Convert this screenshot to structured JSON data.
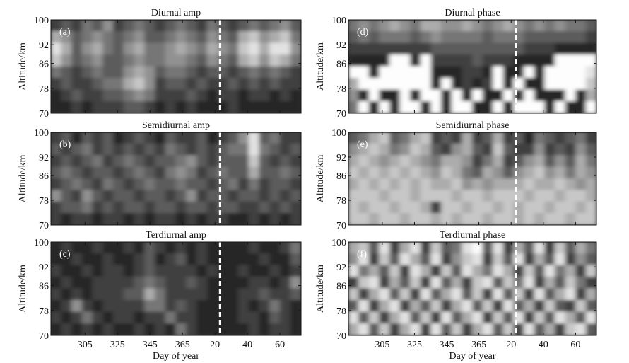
{
  "chart_data": [
    {
      "id": "a",
      "type": "heatmap",
      "title": "Diurnal amp",
      "panel_label": "(a)",
      "ylabel": "Altitude/km",
      "xlabel": "",
      "grid": [
        [
          2,
          3,
          2,
          4,
          3,
          5,
          2,
          3,
          4,
          3,
          2,
          3,
          4,
          3,
          2,
          4,
          3,
          2,
          3,
          4,
          3,
          4,
          5,
          3
        ],
        [
          6,
          5,
          3,
          4,
          5,
          4,
          3,
          4,
          5,
          3,
          3,
          4,
          5,
          4,
          3,
          5,
          4,
          3,
          6,
          7,
          5,
          6,
          7,
          4
        ],
        [
          8,
          6,
          3,
          5,
          6,
          4,
          3,
          5,
          6,
          4,
          4,
          5,
          6,
          5,
          4,
          6,
          5,
          4,
          7,
          8,
          6,
          8,
          8,
          5
        ],
        [
          7,
          5,
          3,
          4,
          5,
          3,
          3,
          4,
          5,
          4,
          4,
          5,
          5,
          4,
          3,
          5,
          4,
          3,
          6,
          7,
          5,
          7,
          6,
          4
        ],
        [
          4,
          3,
          2,
          3,
          4,
          3,
          3,
          5,
          6,
          5,
          3,
          4,
          4,
          3,
          2,
          3,
          3,
          2,
          3,
          4,
          3,
          4,
          3,
          2
        ],
        [
          2,
          3,
          2,
          2,
          3,
          4,
          4,
          6,
          7,
          5,
          2,
          3,
          3,
          2,
          3,
          2,
          2,
          3,
          2,
          3,
          2,
          3,
          2,
          2
        ],
        [
          1,
          2,
          3,
          2,
          2,
          3,
          3,
          4,
          5,
          4,
          2,
          2,
          2,
          3,
          2,
          1,
          2,
          2,
          1,
          2,
          2,
          1,
          2,
          1
        ],
        [
          1,
          1,
          2,
          1,
          2,
          2,
          2,
          3,
          3,
          2,
          1,
          2,
          1,
          2,
          1,
          1,
          1,
          2,
          1,
          1,
          1,
          1,
          1,
          1
        ]
      ]
    },
    {
      "id": "b",
      "type": "heatmap",
      "title": "Semidiurnal amp",
      "panel_label": "(b)",
      "ylabel": "Altitude/km",
      "xlabel": "",
      "grid": [
        [
          2,
          3,
          1,
          3,
          2,
          3,
          1,
          2,
          3,
          2,
          1,
          3,
          2,
          2,
          3,
          1,
          2,
          3,
          5,
          8,
          3,
          4,
          2,
          2
        ],
        [
          3,
          2,
          3,
          4,
          2,
          3,
          2,
          3,
          2,
          3,
          2,
          4,
          3,
          2,
          3,
          2,
          3,
          4,
          4,
          8,
          4,
          3,
          2,
          3
        ],
        [
          2,
          3,
          2,
          3,
          4,
          2,
          3,
          4,
          3,
          2,
          3,
          3,
          4,
          5,
          3,
          2,
          3,
          3,
          3,
          7,
          3,
          2,
          3,
          2
        ],
        [
          3,
          4,
          3,
          2,
          3,
          3,
          2,
          3,
          4,
          3,
          2,
          4,
          5,
          4,
          2,
          3,
          4,
          3,
          3,
          6,
          3,
          3,
          4,
          3
        ],
        [
          2,
          3,
          4,
          3,
          2,
          4,
          3,
          2,
          3,
          4,
          3,
          3,
          4,
          3,
          3,
          2,
          3,
          4,
          2,
          4,
          2,
          3,
          3,
          2
        ],
        [
          5,
          3,
          2,
          5,
          3,
          2,
          3,
          3,
          2,
          3,
          3,
          2,
          3,
          5,
          2,
          3,
          3,
          2,
          3,
          3,
          2,
          3,
          2,
          3
        ],
        [
          2,
          3,
          3,
          4,
          2,
          3,
          2,
          3,
          3,
          2,
          3,
          3,
          2,
          3,
          3,
          2,
          3,
          3,
          2,
          2,
          3,
          2,
          3,
          2
        ],
        [
          2,
          1,
          2,
          2,
          1,
          2,
          2,
          1,
          2,
          1,
          2,
          2,
          1,
          2,
          1,
          2,
          2,
          1,
          1,
          2,
          1,
          2,
          1,
          2
        ]
      ]
    },
    {
      "id": "c",
      "type": "heatmap",
      "title": "Terdiurnal amp",
      "panel_label": "(c)",
      "ylabel": "Altitude/km",
      "xlabel": "Day of year",
      "grid": [
        [
          1,
          2,
          1,
          1,
          2,
          1,
          1,
          2,
          1,
          3,
          2,
          1,
          2,
          1,
          2,
          1,
          1,
          1,
          1,
          2,
          1,
          1,
          2,
          4
        ],
        [
          1,
          1,
          2,
          1,
          1,
          2,
          1,
          1,
          2,
          3,
          1,
          2,
          3,
          1,
          2,
          1,
          1,
          1,
          1,
          1,
          2,
          1,
          1,
          3
        ],
        [
          2,
          1,
          1,
          2,
          1,
          2,
          2,
          1,
          2,
          3,
          2,
          2,
          2,
          2,
          1,
          2,
          1,
          1,
          2,
          1,
          1,
          2,
          1,
          2
        ],
        [
          1,
          2,
          1,
          1,
          2,
          2,
          2,
          2,
          3,
          4,
          3,
          2,
          2,
          3,
          2,
          1,
          1,
          1,
          1,
          2,
          2,
          1,
          2,
          5
        ],
        [
          2,
          1,
          2,
          1,
          2,
          2,
          2,
          3,
          3,
          6,
          4,
          2,
          2,
          2,
          2,
          1,
          1,
          1,
          2,
          2,
          3,
          2,
          2,
          3
        ],
        [
          1,
          2,
          5,
          2,
          1,
          2,
          2,
          2,
          2,
          4,
          4,
          2,
          3,
          2,
          1,
          1,
          1,
          1,
          2,
          1,
          2,
          4,
          2,
          1
        ],
        [
          2,
          1,
          2,
          4,
          2,
          1,
          2,
          2,
          1,
          2,
          2,
          4,
          2,
          2,
          1,
          1,
          1,
          1,
          2,
          2,
          1,
          3,
          2,
          1
        ],
        [
          1,
          2,
          1,
          2,
          1,
          2,
          1,
          1,
          2,
          1,
          2,
          1,
          4,
          2,
          1,
          1,
          1,
          1,
          1,
          2,
          1,
          2,
          2,
          1
        ]
      ]
    },
    {
      "id": "d",
      "type": "heatmap",
      "title": "Diurnal phase",
      "panel_label": "(d)",
      "ylabel": "Altitude/km",
      "xlabel": "",
      "grid": [
        [
          4,
          5,
          4,
          5,
          6,
          5,
          4,
          6,
          6,
          5,
          5,
          6,
          5,
          4,
          5,
          6,
          5,
          4,
          5,
          4,
          5,
          4,
          4,
          3
        ],
        [
          3,
          4,
          3,
          4,
          4,
          4,
          3,
          4,
          5,
          4,
          4,
          4,
          4,
          3,
          4,
          4,
          4,
          3,
          3,
          3,
          3,
          3,
          3,
          2
        ],
        [
          2,
          2,
          2,
          2,
          2,
          2,
          2,
          2,
          3,
          3,
          3,
          3,
          3,
          3,
          3,
          3,
          3,
          2,
          2,
          2,
          1,
          1,
          1,
          1
        ],
        [
          1,
          1,
          1,
          1,
          9,
          9,
          1,
          9,
          2,
          2,
          2,
          2,
          3,
          2,
          2,
          2,
          1,
          1,
          1,
          1,
          9,
          9,
          9,
          9
        ],
        [
          9,
          9,
          1,
          9,
          9,
          9,
          9,
          9,
          1,
          1,
          1,
          2,
          2,
          1,
          9,
          1,
          1,
          9,
          1,
          9,
          9,
          9,
          9,
          8
        ],
        [
          6,
          9,
          9,
          9,
          9,
          9,
          9,
          9,
          1,
          9,
          1,
          2,
          1,
          2,
          9,
          1,
          9,
          1,
          1,
          9,
          9,
          9,
          9,
          7
        ],
        [
          5,
          1,
          9,
          1,
          1,
          9,
          1,
          9,
          9,
          1,
          9,
          1,
          9,
          1,
          1,
          9,
          1,
          9,
          1,
          1,
          1,
          9,
          1,
          6
        ],
        [
          4,
          9,
          1,
          9,
          1,
          9,
          9,
          1,
          9,
          1,
          9,
          9,
          1,
          1,
          9,
          1,
          9,
          9,
          9,
          1,
          9,
          1,
          1,
          9
        ]
      ]
    },
    {
      "id": "e",
      "type": "heatmap",
      "title": "Semidiurnal phase",
      "panel_label": "(e)",
      "ylabel": "Altitude/km",
      "xlabel": "",
      "grid": [
        [
          3,
          4,
          6,
          7,
          3,
          4,
          6,
          7,
          2,
          3,
          2,
          6,
          2,
          3,
          6,
          2,
          3,
          1,
          4,
          3,
          2,
          3,
          4,
          2
        ],
        [
          5,
          6,
          7,
          6,
          4,
          5,
          7,
          6,
          3,
          2,
          5,
          6,
          3,
          2,
          7,
          3,
          2,
          2,
          5,
          2,
          3,
          2,
          5,
          3
        ],
        [
          6,
          7,
          6,
          5,
          6,
          7,
          6,
          5,
          4,
          6,
          6,
          5,
          2,
          4,
          6,
          2,
          3,
          5,
          6,
          3,
          5,
          3,
          6,
          4
        ],
        [
          7,
          6,
          7,
          6,
          7,
          6,
          7,
          6,
          5,
          7,
          6,
          4,
          3,
          6,
          5,
          3,
          5,
          6,
          7,
          5,
          6,
          4,
          6,
          5
        ],
        [
          6,
          7,
          6,
          7,
          6,
          7,
          6,
          7,
          6,
          6,
          7,
          5,
          6,
          5,
          6,
          6,
          6,
          7,
          6,
          6,
          7,
          6,
          5,
          6
        ],
        [
          7,
          7,
          7,
          6,
          7,
          7,
          6,
          7,
          7,
          7,
          6,
          7,
          7,
          6,
          7,
          7,
          7,
          6,
          7,
          7,
          6,
          7,
          7,
          6
        ],
        [
          7,
          6,
          7,
          7,
          6,
          7,
          7,
          6,
          2,
          7,
          7,
          6,
          7,
          7,
          6,
          7,
          6,
          7,
          7,
          6,
          7,
          7,
          6,
          7
        ],
        [
          7,
          7,
          6,
          7,
          7,
          6,
          7,
          7,
          6,
          7,
          6,
          7,
          7,
          6,
          7,
          7,
          6,
          7,
          6,
          7,
          7,
          6,
          7,
          7
        ]
      ]
    },
    {
      "id": "f",
      "type": "heatmap",
      "title": "Terdiurnal phase",
      "panel_label": "(f)",
      "ylabel": "Altitude/km",
      "xlabel": "Day of year",
      "grid": [
        [
          6,
          7,
          3,
          8,
          2,
          6,
          8,
          2,
          7,
          3,
          4,
          8,
          9,
          3,
          8,
          2,
          6,
          3,
          8,
          2,
          7,
          3,
          6,
          4
        ],
        [
          5,
          8,
          2,
          7,
          3,
          8,
          6,
          3,
          8,
          2,
          5,
          7,
          8,
          2,
          7,
          3,
          8,
          2,
          6,
          3,
          8,
          2,
          5,
          3
        ],
        [
          8,
          4,
          6,
          3,
          7,
          2,
          8,
          6,
          2,
          7,
          3,
          8,
          6,
          4,
          8,
          6,
          2,
          7,
          3,
          8,
          4,
          6,
          2,
          7
        ],
        [
          2,
          7,
          8,
          2,
          6,
          3,
          7,
          2,
          8,
          3,
          6,
          2,
          7,
          8,
          3,
          7,
          4,
          8,
          2,
          6,
          3,
          7,
          4,
          2
        ],
        [
          7,
          2,
          6,
          8,
          3,
          7,
          2,
          8,
          3,
          6,
          8,
          3,
          7,
          2,
          8,
          3,
          7,
          2,
          8,
          3,
          6,
          8,
          2,
          6
        ],
        [
          3,
          8,
          2,
          6,
          8,
          2,
          6,
          3,
          7,
          2,
          6,
          8,
          3,
          7,
          2,
          8,
          3,
          6,
          2,
          7,
          3,
          2,
          7,
          3
        ],
        [
          8,
          3,
          7,
          2,
          6,
          8,
          3,
          7,
          2,
          8,
          3,
          6,
          8,
          2,
          7,
          3,
          8,
          2,
          7,
          3,
          8,
          6,
          3,
          8
        ],
        [
          6,
          8,
          3,
          7,
          2,
          6,
          8,
          2,
          8,
          3,
          7,
          2,
          6,
          8,
          3,
          7,
          2,
          8,
          3,
          6,
          2,
          7,
          8,
          3
        ]
      ]
    }
  ],
  "shared": {
    "y_ticks": [
      70,
      78,
      86,
      92,
      100
    ],
    "ylim": [
      70,
      100
    ],
    "x_ticks": [
      {
        "day": 305,
        "label": "305"
      },
      {
        "day": 325,
        "label": "325"
      },
      {
        "day": 345,
        "label": "345"
      },
      {
        "day": 365,
        "label": "365"
      },
      {
        "day": 385,
        "label": "20"
      },
      {
        "day": 405,
        "label": "40"
      },
      {
        "day": 425,
        "label": "60"
      }
    ],
    "xlim": [
      284,
      438
    ],
    "dashed_line_day": 388,
    "dashed_line_color": "#ffffff",
    "colormap": "grayscale (black = low, white = high)",
    "levels": 10,
    "grid_on": false
  }
}
